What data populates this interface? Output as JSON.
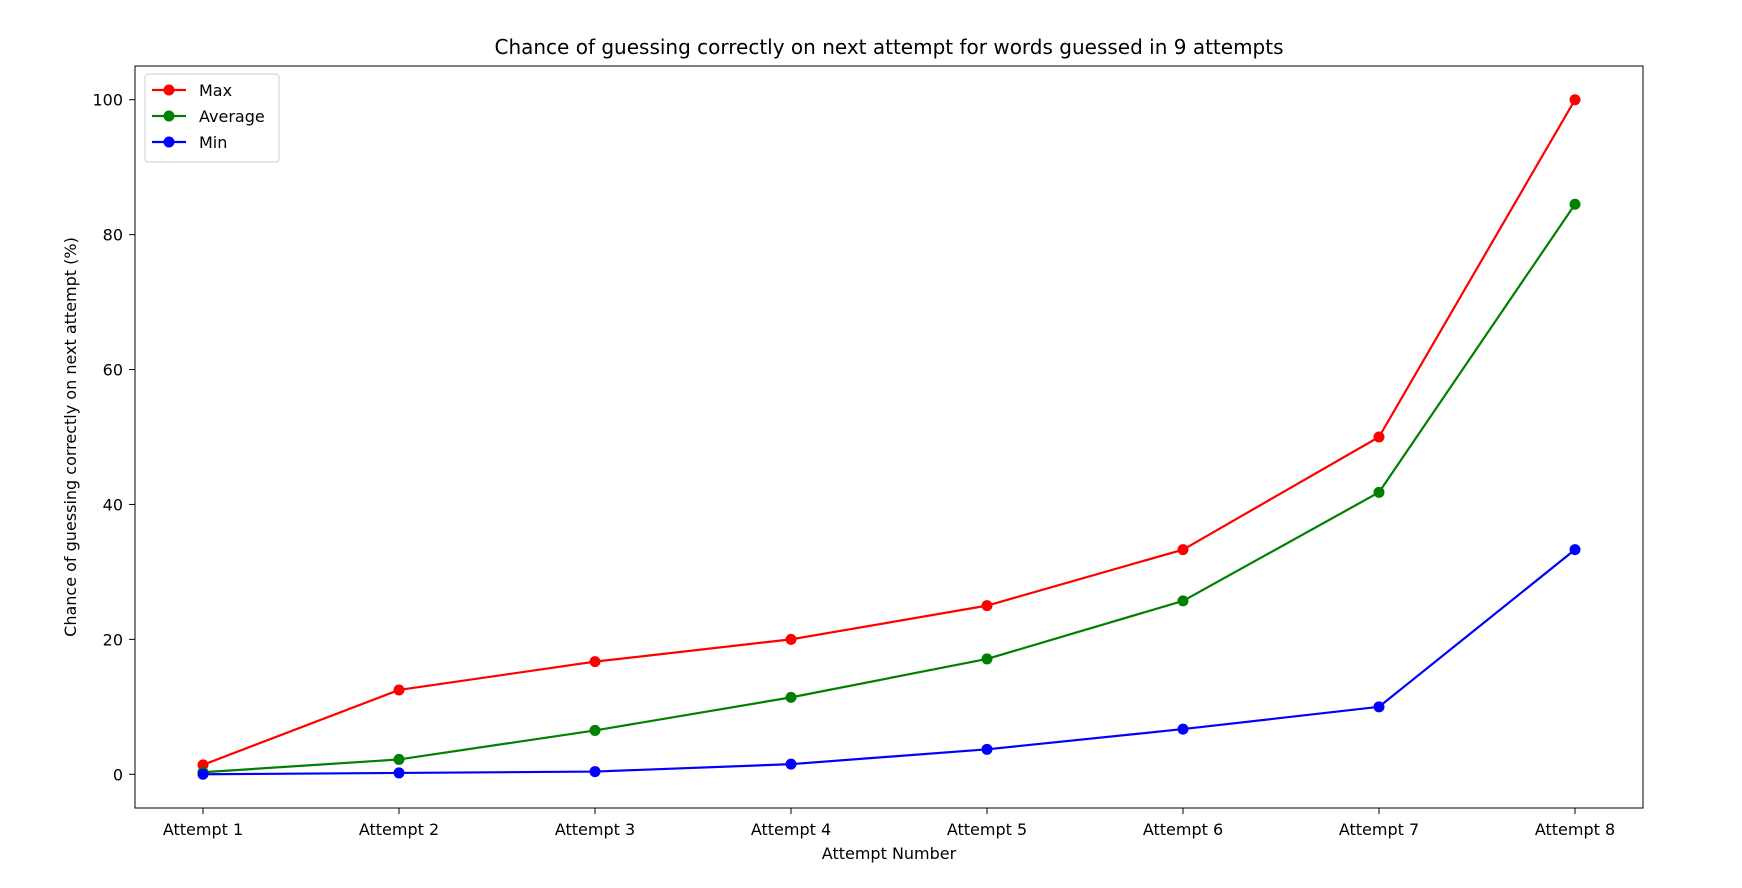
{
  "chart_data": {
    "type": "line",
    "title": "Chance of guessing correctly on next attempt for words guessed in 9 attempts",
    "xlabel": "Attempt Number",
    "ylabel": "Chance of guessing correctly on next attempt (%)",
    "categories": [
      "Attempt 1",
      "Attempt 2",
      "Attempt 3",
      "Attempt 4",
      "Attempt 5",
      "Attempt 6",
      "Attempt 7",
      "Attempt 8"
    ],
    "ylim": [
      -5,
      105
    ],
    "yticks": [
      0,
      20,
      40,
      60,
      80,
      100
    ],
    "grid": false,
    "legend_position": "top-left",
    "series": [
      {
        "name": "Max",
        "color": "#ff0000",
        "values": [
          1.4,
          12.5,
          16.7,
          20.0,
          25.0,
          33.3,
          50.0,
          100.0
        ]
      },
      {
        "name": "Average",
        "color": "#008000",
        "values": [
          0.3,
          2.2,
          6.5,
          11.4,
          17.1,
          25.7,
          41.8,
          84.5
        ]
      },
      {
        "name": "Min",
        "color": "#0000ff",
        "values": [
          0.0,
          0.2,
          0.4,
          1.5,
          3.7,
          6.7,
          10.0,
          33.3
        ]
      }
    ]
  }
}
